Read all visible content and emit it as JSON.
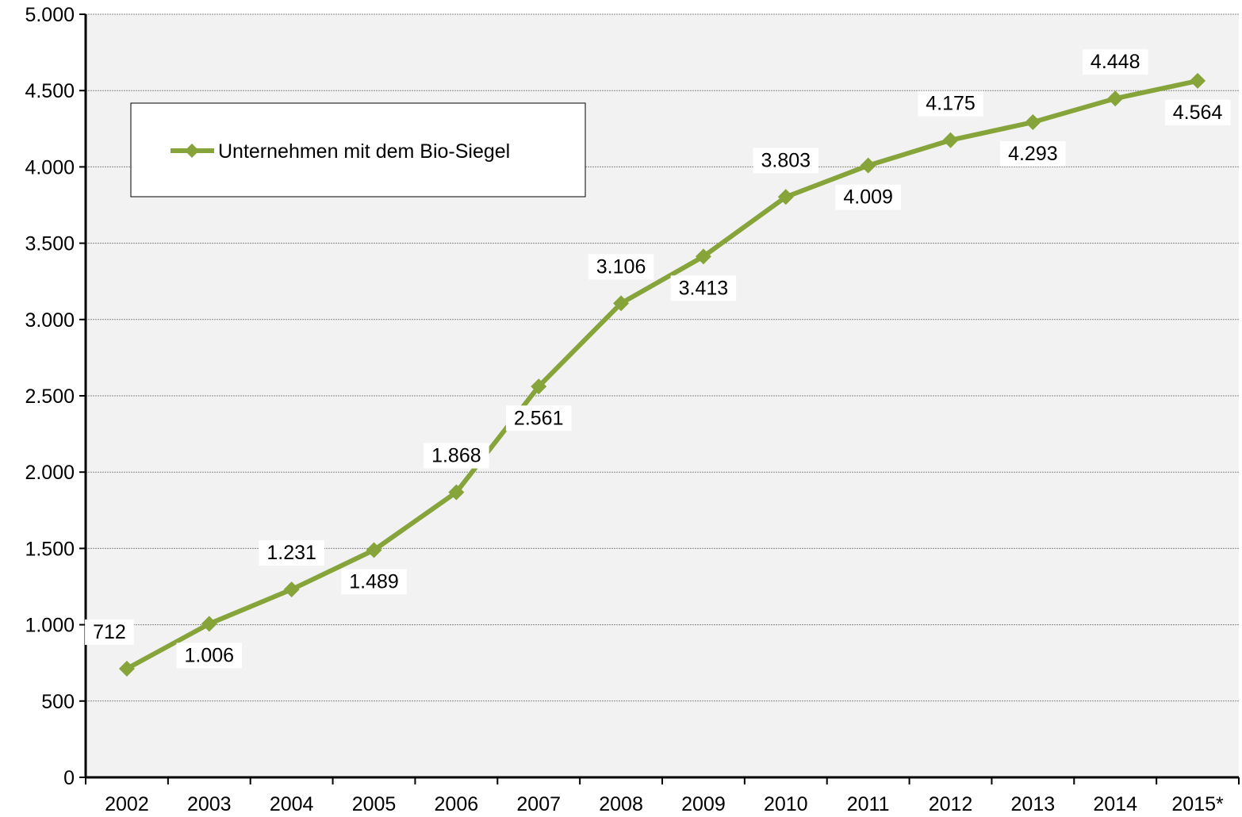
{
  "chart_data": {
    "type": "line",
    "categories": [
      "2002",
      "2003",
      "2004",
      "2005",
      "2006",
      "2007",
      "2008",
      "2009",
      "2010",
      "2011",
      "2012",
      "2013",
      "2014",
      "2015*"
    ],
    "series": [
      {
        "name": "Unternehmen mit dem Bio-Siegel",
        "color": "#86a43a",
        "values": [
          712,
          1006,
          1231,
          1489,
          1868,
          2561,
          3106,
          3413,
          3803,
          4009,
          4175,
          4293,
          4448,
          4564
        ],
        "value_labels": [
          "712",
          "1.006",
          "1.231",
          "1.489",
          "1.868",
          "2.561",
          "3.106",
          "3.413",
          "3.803",
          "4.009",
          "4.175",
          "4.293",
          "4.448",
          "4.564"
        ]
      }
    ],
    "ylim": [
      0,
      5000
    ],
    "yticks": [
      0,
      500,
      {
        "value": 1000,
        "label": "1.000"
      },
      {
        "value": 1500,
        "label": "1.500"
      },
      {
        "value": 2000,
        "label": "2.000"
      },
      {
        "value": 2500,
        "label": "2.500"
      },
      {
        "value": 3000,
        "label": "3.000"
      },
      {
        "value": 3500,
        "label": "3.500"
      },
      {
        "value": 4000,
        "label": "4.000"
      },
      {
        "value": 4500,
        "label": "4.500"
      },
      {
        "value": 5000,
        "label": "5.000"
      }
    ],
    "grid": true,
    "legend": "upper left"
  }
}
